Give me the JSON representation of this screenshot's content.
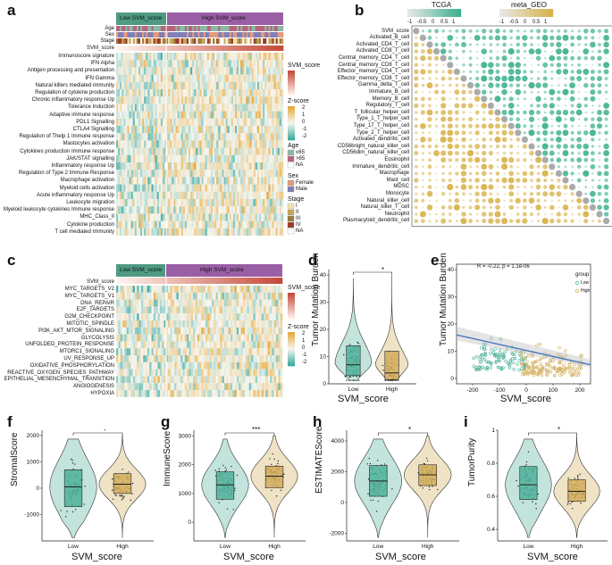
{
  "panels": {
    "a": {
      "label": "a",
      "groups": [
        "Low SVM_score",
        "High SVM_score"
      ],
      "annotation_rows": [
        "Age",
        "Sex",
        "Stage",
        "SVM_score"
      ],
      "rows": [
        "Immunoscore signature",
        "IFN Alpha",
        "Antigen processing and presentation",
        "IFN Gamma",
        "Natural killers mediated immunity",
        "Regulation of cytokine production",
        "Chronic inflammatory response Up",
        "Tolerance Induction",
        "Adaptive immune response",
        "PDL1 Signalling",
        "CTLA4 Signalling",
        "Regulation of Thelp 1 Immune response",
        "Mastocytes activation",
        "Cytokines production Immune response",
        "JAK/STAT signalling",
        "Inflammatory response Up",
        "Regulation of Type 2 Immune Response",
        "Macrophage activation",
        "Myeloid cells activation",
        "Acute inflammatory response Up",
        "Leukocyte migration",
        "Myeloid leukocyte cytokines Immune response",
        "MHC_Class_II",
        "Cytokine production",
        "T cell mediated Immunity"
      ],
      "legend": {
        "svm_title": "SVM_score",
        "z_title": "Z-score",
        "z_ticks": [
          "2",
          "1",
          "0",
          "-1",
          "-2"
        ],
        "age_title": "Age",
        "age_items": [
          {
            "label": "≤65",
            "color": "#8ab8a9"
          },
          {
            "label": ">65",
            "color": "#b5657a"
          },
          {
            "label": "NA",
            "color": "#ffffff"
          }
        ],
        "sex_title": "Sex",
        "sex_items": [
          {
            "label": "Female",
            "color": "#e39a7d"
          },
          {
            "label": "Male",
            "color": "#7f7fb8"
          }
        ],
        "stage_title": "Stage",
        "stage_items": [
          {
            "label": "I",
            "color": "#f3e2b0"
          },
          {
            "label": "II",
            "color": "#c7a25a"
          },
          {
            "label": "III",
            "color": "#9c7a38"
          },
          {
            "label": "IV",
            "color": "#9a3a2a"
          },
          {
            "label": "NA",
            "color": "#ffffff"
          }
        ]
      }
    },
    "b": {
      "label": "b",
      "legend_tcga": "TCGA",
      "legend_geo": "meta_GEO",
      "legend_ticks": [
        "-1",
        "-0.5",
        "0",
        "0.5",
        "1"
      ],
      "rows": [
        "SVM_score",
        "Activated_B_cell",
        "Activated_CD4_T_cell",
        "Activated_CD8_T_cell",
        "Central_memory_CD4_T_cell",
        "Central_memory_CD8_T_cell",
        "Effector_memory_CD4_T_cell",
        "Effector_memory_CD8_T_cell",
        "Gamma_delta_T_cell",
        "Immature_B_cell",
        "Memory_B_cell",
        "Regulatory_T_cell",
        "T_follicular_helper_cell",
        "Type_1_T_helper_cell",
        "Type_17_T_helper_cell",
        "Type_2_T_helper_cell",
        "Activated_dendritic_cell",
        "CD56bright_natural_killer_cell",
        "CD56dim_natural_killer_cell",
        "Eosinophil",
        "Immature_dendritic_cell",
        "Macrophage",
        "Mast_cell",
        "MDSC",
        "Monocyte",
        "Natural_killer_cell",
        "Natural_killer_T_cell",
        "Neutrophil",
        "Plasmacytoid_dendritic_cell"
      ]
    },
    "c": {
      "label": "c",
      "groups": [
        "Low SVM_score",
        "High SVM_score"
      ],
      "annotation_row": "SVM_score",
      "rows": [
        "MYC_TARGETS_V2",
        "MYC_TARGETS_V1",
        "DNA_REPAIR",
        "E2F_TARGETS",
        "G2M_CHECKPOINT",
        "MITOTIC_SPINDLE",
        "PI3K_AKT_MTOR_SIGNALING",
        "GLYCOLYSIS",
        "UNFOLDED_PROTEIN_RESPONSE",
        "MTORC1_SIGNALING",
        "UV_RESPONSE_UP",
        "OXIDATIVE_PHOSPHORYLATION",
        "REACTIVE_OXYGEN_SPECIES_PATHWAY",
        "EPITHELIAL_MESENCHYMAL_TRANSITION",
        "ANGIOGENESIS",
        "HYPOXIA"
      ],
      "legend": {
        "svm_title": "SVM_score",
        "z_title": "Z-score",
        "z_ticks": [
          "2",
          "1",
          "0",
          "-1",
          "-2"
        ]
      }
    },
    "d": {
      "label": "d",
      "ylabel": "Tumor Mutation Burden",
      "xlabel": "SVM_score",
      "sig": "*"
    },
    "e": {
      "label": "e",
      "ylabel": "Tumor Mutation Burden",
      "xlabel": "SVM_score",
      "stat_text": "R = -0.22, p = 1.1e-06",
      "legend_title": "group",
      "legend_items": [
        "Low",
        "High"
      ]
    },
    "f": {
      "label": "f",
      "ylabel": "StromalScore",
      "xlabel": "SVM_score",
      "sig": "-"
    },
    "g": {
      "label": "g",
      "ylabel": "ImmuneScore",
      "xlabel": "SVM_score",
      "sig": "***"
    },
    "h": {
      "label": "h",
      "ylabel": "ESTIMATEScore",
      "xlabel": "SVM_score",
      "sig": "*"
    },
    "i": {
      "label": "i",
      "ylabel": "TumorPurity",
      "xlabel": "SVM_score",
      "sig": "*"
    }
  },
  "colors": {
    "low": "#4fb29a",
    "high": "#d2ad5a",
    "svm_high": "#c44a3a",
    "tcga": "#3fb18f",
    "geo": "#d8b24a"
  },
  "chart_data": [
    {
      "panel": "d",
      "type": "violin",
      "title": "",
      "xlabel": "SVM_score",
      "ylabel": "Tumor Mutation Burden",
      "categories": [
        "Low",
        "High"
      ],
      "medians": [
        7,
        4
      ],
      "q1": [
        3,
        1.5
      ],
      "q3": [
        14,
        12
      ],
      "ylim": [
        0,
        42
      ],
      "yticks": [
        0,
        10,
        20,
        30,
        40
      ]
    },
    {
      "panel": "e",
      "type": "scatter",
      "title": "",
      "xlabel": "SVM_score",
      "ylabel": "Tumor Mutation Burden",
      "xlim": [
        -260,
        240
      ],
      "ylim": [
        -2,
        42
      ],
      "xticks": [
        -200,
        -100,
        0,
        100,
        200
      ],
      "yticks": [
        0,
        10,
        20,
        30,
        40
      ],
      "regression": {
        "x": [
          -260,
          240
        ],
        "y": [
          16,
          5
        ]
      },
      "series": [
        {
          "name": "Low"
        },
        {
          "name": "High"
        }
      ]
    },
    {
      "panel": "f",
      "type": "violin",
      "title": "",
      "xlabel": "SVM_score",
      "ylabel": "StromalScore",
      "categories": [
        "Low",
        "High"
      ],
      "medians": [
        50,
        150
      ],
      "q1": [
        -700,
        -200
      ],
      "q3": [
        700,
        550
      ],
      "ylim": [
        -2000,
        2200
      ],
      "yticks": [
        -1000,
        0,
        1000,
        2000
      ]
    },
    {
      "panel": "g",
      "type": "violin",
      "title": "",
      "xlabel": "SVM_score",
      "ylabel": "ImmuneScore",
      "categories": [
        "Low",
        "High"
      ],
      "medians": [
        1300,
        1600
      ],
      "q1": [
        800,
        1200
      ],
      "q3": [
        1750,
        1950
      ],
      "ylim": [
        -650,
        3200
      ],
      "yticks": [
        0,
        1000,
        2000,
        3000
      ]
    },
    {
      "panel": "h",
      "type": "violin",
      "title": "",
      "xlabel": "SVM_score",
      "ylabel": "ESTIMATEScore",
      "categories": [
        "Low",
        "High"
      ],
      "medians": [
        1400,
        1800
      ],
      "q1": [
        400,
        1100
      ],
      "q3": [
        2400,
        2450
      ],
      "ylim": [
        -2500,
        4700
      ],
      "yticks": [
        -2000,
        0,
        2000,
        4000
      ]
    },
    {
      "panel": "i",
      "type": "violin",
      "title": "",
      "xlabel": "SVM_score",
      "ylabel": "TumorPurity",
      "categories": [
        "Low",
        "High"
      ],
      "medians": [
        0.67,
        0.63
      ],
      "q1": [
        0.58,
        0.57
      ],
      "q3": [
        0.78,
        0.7
      ],
      "ylim": [
        0.33,
        1.0
      ],
      "yticks": [
        0.4,
        0.6,
        0.8,
        1.0
      ]
    }
  ]
}
